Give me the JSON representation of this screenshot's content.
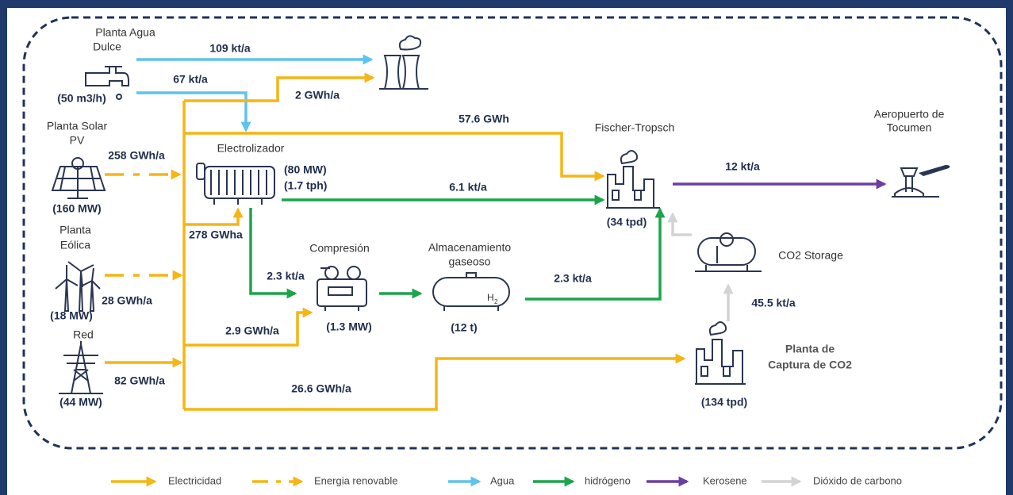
{
  "nodes": [
    {
      "label": [
        "Planta Agua",
        "Dulce"
      ],
      "spec": [
        "(50 m3/h)"
      ]
    },
    {
      "label": [
        "Planta Solar",
        "PV"
      ],
      "spec": [
        "(160 MW)"
      ]
    },
    {
      "label": [
        "Planta",
        "Eólica"
      ],
      "spec": [
        "(18 MW)"
      ]
    },
    {
      "label": [
        "Red"
      ],
      "spec": [
        "(44 MW)"
      ]
    },
    {
      "label": [
        "Electrolizador"
      ],
      "spec": [
        "(80 MW)",
        "(1.7 tph)"
      ]
    },
    {
      "label": [
        "Compresión"
      ],
      "spec": [
        "(1.3 MW)"
      ]
    },
    {
      "label": [
        "Almacenamiento",
        "gaseoso"
      ],
      "spec": [
        "(12 t)"
      ],
      "icon_text": [
        "H",
        "2"
      ]
    },
    {
      "label": [
        "Fischer-Tropsch"
      ],
      "spec": [
        "(34 tpd)"
      ]
    },
    {
      "label": [
        "Aeropuerto de",
        "Tocumen"
      ]
    },
    {
      "label": [
        "CO2 Storage"
      ]
    },
    {
      "label": [
        "Planta de",
        "Captura de CO2"
      ],
      "spec": [
        "(134 tpd)"
      ]
    }
  ],
  "flows": [
    "109 kt/a",
    "67 kt/a",
    "2 GWh/a",
    "57.6 GWh",
    "258 GWh/a",
    "6.1 kt/a",
    "12 kt/a",
    "278 GWha",
    "2.3 kt/a",
    "2.3 kt/a",
    "28 GWh/a",
    "2.9 GWh/a",
    "82 GWh/a",
    "26.6 GWh/a",
    "45.5 kt/a"
  ],
  "legend": [
    {
      "label": "Electricidad",
      "color": "#f5b514"
    },
    {
      "label": "Energia renovable",
      "color": "#f5b514"
    },
    {
      "label": "Agua",
      "color": "#5ec3ee"
    },
    {
      "label": "hidrógeno",
      "color": "#1aa54a"
    },
    {
      "label": "Kerosene",
      "color": "#6b3fa0"
    },
    {
      "label": "Dióxido de carbono",
      "color": "#d3d3d3"
    }
  ]
}
